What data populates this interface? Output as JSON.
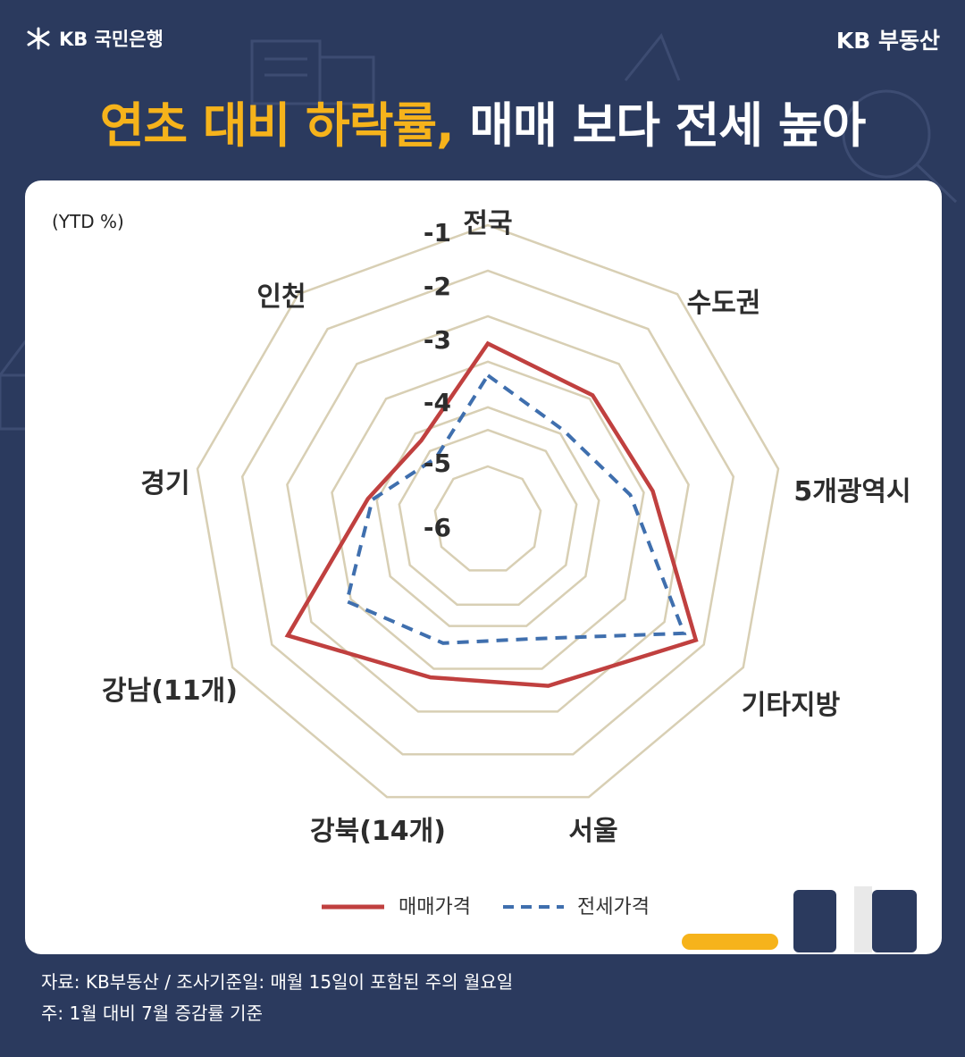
{
  "brand": {
    "bank_name": "KB 국민은행",
    "realestate_name": "KB 부동산"
  },
  "headline": {
    "highlight": "연초 대비 하락률,",
    "rest": " 매매 보다 전세 높아"
  },
  "colors": {
    "background": "#2b3a5e",
    "highlight": "#f6b31b",
    "sale": "#c0403f",
    "jeonse": "#3f6fae",
    "grid": "#d8cfb4"
  },
  "chart_data": {
    "type": "radar",
    "unit_label": "(YTD %)",
    "categories": [
      "전국",
      "수도권",
      "5개광역시",
      "기타지방",
      "서울",
      "강북(14개)",
      "강남(11개)",
      "경기",
      "인천"
    ],
    "tick_labels": [
      "-1",
      "-2",
      "-3",
      "-4",
      "-5",
      "-6"
    ],
    "range": [
      -6.3,
      -1
    ],
    "series": [
      {
        "name": "매매가격",
        "style": "solid",
        "values": [
          -3.6,
          -3.9,
          -3.8,
          -2.2,
          -3.6,
          -3.8,
          -2.4,
          -4.8,
          -5.2
        ]
      },
      {
        "name": "전세가격",
        "style": "dashed",
        "values": [
          -4.3,
          -4.9,
          -4.3,
          -2.5,
          -4.7,
          -4.6,
          -3.9,
          -4.9,
          -5.7
        ]
      }
    ]
  },
  "footnotes": {
    "source": "자료: KB부동산 / 조사기준일: 매월 15일이 포함된 주의 월요일",
    "note": "주: 1월 대비 7월 증감률 기준"
  }
}
